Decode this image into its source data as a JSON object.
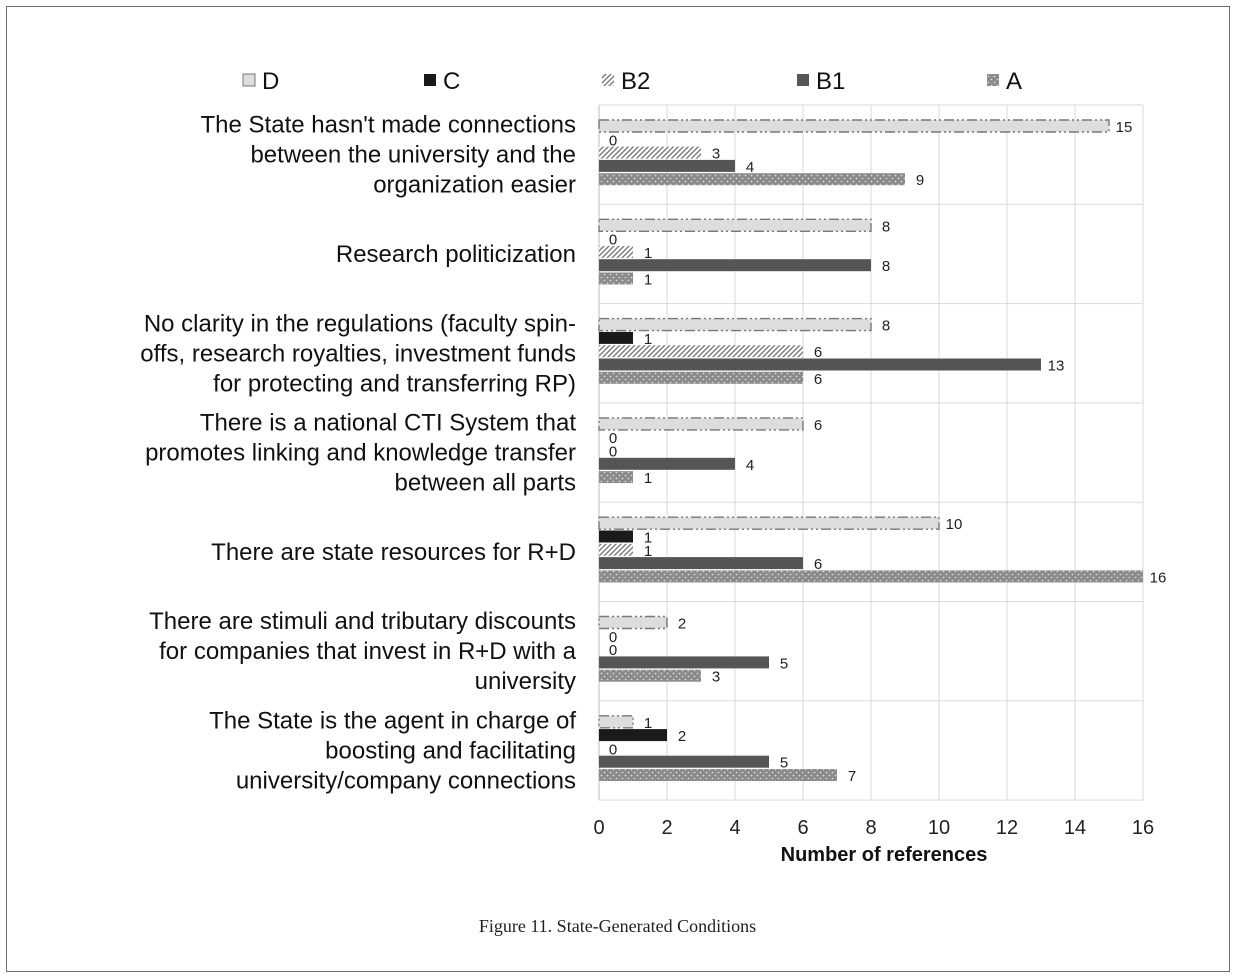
{
  "caption": "Figure 11. State-Generated Conditions",
  "chart_data": {
    "type": "bar",
    "orientation": "horizontal",
    "title": "",
    "xlabel": "Number of references",
    "ylabel": "",
    "xlim": [
      0,
      16
    ],
    "xticks": [
      0,
      2,
      4,
      6,
      8,
      10,
      12,
      14,
      16
    ],
    "grid": true,
    "legend_position": "top",
    "legend": [
      "D",
      "C",
      "B2",
      "B1",
      "A"
    ],
    "categories": [
      {
        "lines": [
          "The State hasn't made connections",
          "between the university and the",
          "organization easier"
        ]
      },
      {
        "lines": [
          "Research politicization"
        ]
      },
      {
        "lines": [
          "No clarity in the regulations (faculty spin-",
          "offs, research royalties, investment funds",
          "for protecting and transferring RP)"
        ]
      },
      {
        "lines": [
          "There is a national CTI System that",
          "promotes linking and knowledge transfer",
          "between all parts"
        ]
      },
      {
        "lines": [
          "There are state resources for R+D"
        ]
      },
      {
        "lines": [
          "There are stimuli and tributary discounts",
          "for companies that invest in R+D with a",
          "university"
        ]
      },
      {
        "lines": [
          "The State is the agent in charge of",
          "boosting and facilitating",
          "university/company connections"
        ]
      }
    ],
    "series": [
      {
        "name": "D",
        "color": "#dddddd",
        "pattern": "dashdot",
        "values": [
          15,
          8,
          8,
          6,
          10,
          2,
          1
        ]
      },
      {
        "name": "C",
        "color": "#1a1a1a",
        "pattern": "solid",
        "values": [
          0,
          0,
          1,
          0,
          1,
          0,
          2
        ]
      },
      {
        "name": "B2",
        "color": "#9a9a9a",
        "pattern": "hatch",
        "values": [
          3,
          1,
          6,
          0,
          1,
          0,
          0
        ]
      },
      {
        "name": "B1",
        "color": "#555555",
        "pattern": "solid",
        "values": [
          4,
          8,
          13,
          4,
          6,
          5,
          5
        ]
      },
      {
        "name": "A",
        "color": "#8a8a8a",
        "pattern": "dots",
        "values": [
          9,
          1,
          6,
          1,
          16,
          3,
          7
        ]
      }
    ]
  }
}
